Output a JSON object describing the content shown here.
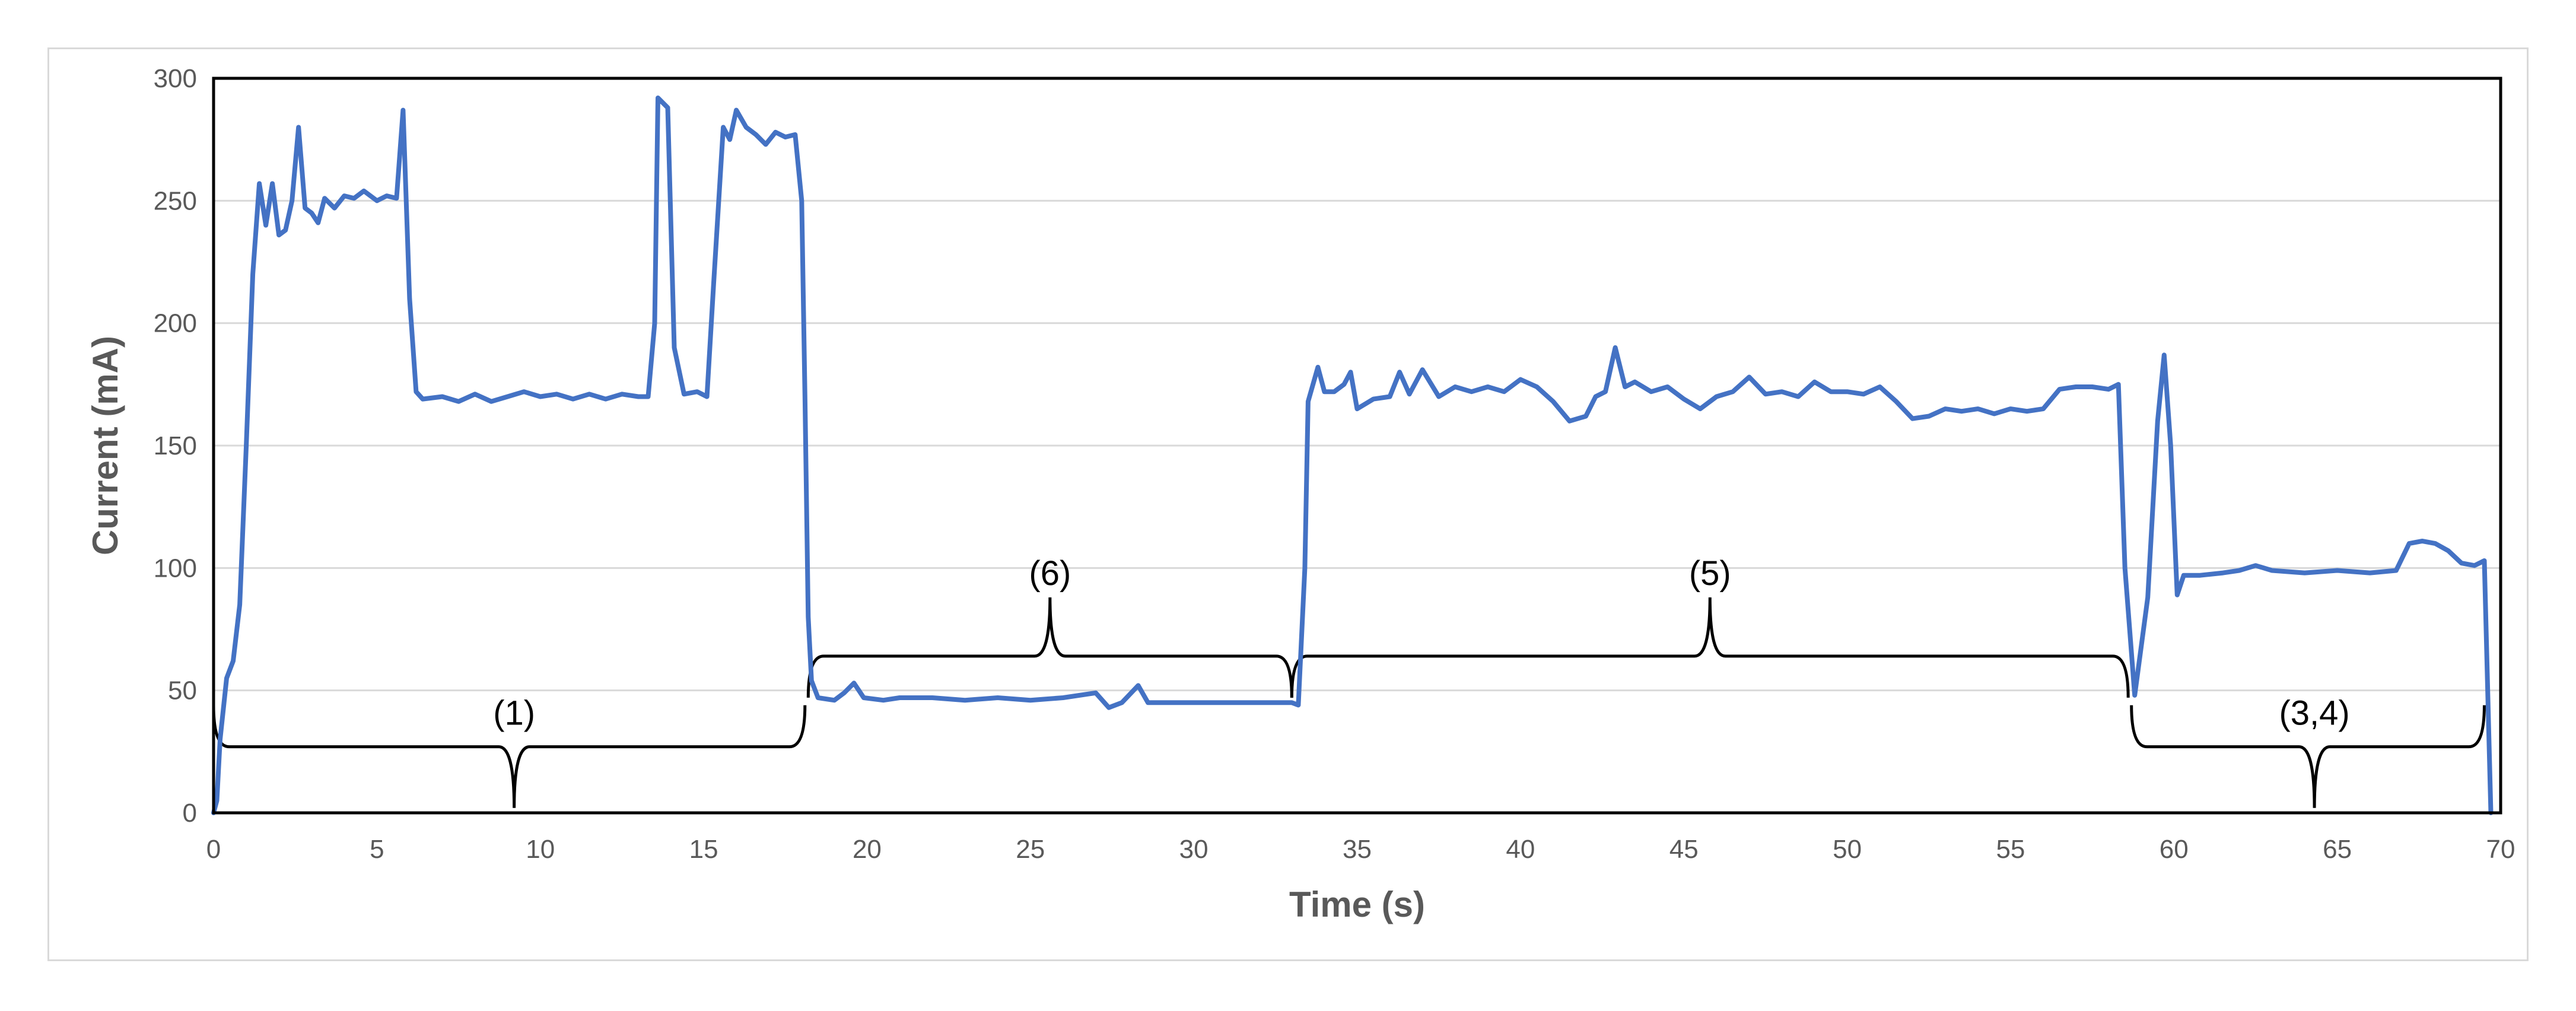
{
  "chart_data": {
    "type": "line",
    "title": "",
    "xlabel": "Time (s)",
    "ylabel": "Current (mA)",
    "xlim": [
      0,
      70
    ],
    "ylim": [
      0,
      300
    ],
    "x_ticks": [
      0,
      5,
      10,
      15,
      20,
      25,
      30,
      35,
      40,
      45,
      50,
      55,
      60,
      65,
      70
    ],
    "y_ticks": [
      0,
      50,
      100,
      150,
      200,
      250,
      300
    ],
    "grid": "horizontal",
    "legend": "none",
    "series_color": "#4472c4",
    "series": [
      {
        "values": [
          [
            0.0,
            0
          ],
          [
            0.1,
            5
          ],
          [
            0.2,
            30
          ],
          [
            0.4,
            55
          ],
          [
            0.6,
            62
          ],
          [
            0.8,
            85
          ],
          [
            1.0,
            150
          ],
          [
            1.2,
            220
          ],
          [
            1.4,
            257
          ],
          [
            1.6,
            240
          ],
          [
            1.8,
            257
          ],
          [
            2.0,
            236
          ],
          [
            2.2,
            238
          ],
          [
            2.4,
            250
          ],
          [
            2.6,
            280
          ],
          [
            2.8,
            247
          ],
          [
            3.0,
            245
          ],
          [
            3.2,
            241
          ],
          [
            3.4,
            251
          ],
          [
            3.7,
            247
          ],
          [
            4.0,
            252
          ],
          [
            4.3,
            251
          ],
          [
            4.6,
            254
          ],
          [
            5.0,
            250
          ],
          [
            5.3,
            252
          ],
          [
            5.6,
            251
          ],
          [
            5.8,
            287
          ],
          [
            6.0,
            210
          ],
          [
            6.2,
            172
          ],
          [
            6.4,
            169
          ],
          [
            7.0,
            170
          ],
          [
            7.5,
            168
          ],
          [
            8.0,
            171
          ],
          [
            8.5,
            168
          ],
          [
            9.0,
            170
          ],
          [
            9.5,
            172
          ],
          [
            10.0,
            170
          ],
          [
            10.5,
            171
          ],
          [
            11.0,
            169
          ],
          [
            11.5,
            171
          ],
          [
            12.0,
            169
          ],
          [
            12.5,
            171
          ],
          [
            13.0,
            170
          ],
          [
            13.3,
            170
          ],
          [
            13.5,
            200
          ],
          [
            13.6,
            292
          ],
          [
            13.9,
            288
          ],
          [
            14.1,
            190
          ],
          [
            14.4,
            171
          ],
          [
            14.8,
            172
          ],
          [
            15.1,
            170
          ],
          [
            15.3,
            215
          ],
          [
            15.6,
            280
          ],
          [
            15.8,
            275
          ],
          [
            16.0,
            287
          ],
          [
            16.3,
            280
          ],
          [
            16.6,
            277
          ],
          [
            16.9,
            273
          ],
          [
            17.2,
            278
          ],
          [
            17.5,
            276
          ],
          [
            17.8,
            277
          ],
          [
            18.0,
            250
          ],
          [
            18.1,
            170
          ],
          [
            18.2,
            80
          ],
          [
            18.3,
            54
          ],
          [
            18.5,
            47
          ],
          [
            19.0,
            46
          ],
          [
            19.3,
            49
          ],
          [
            19.6,
            53
          ],
          [
            19.9,
            47
          ],
          [
            20.5,
            46
          ],
          [
            21.0,
            47
          ],
          [
            22.0,
            47
          ],
          [
            23.0,
            46
          ],
          [
            24.0,
            47
          ],
          [
            25.0,
            46
          ],
          [
            26.0,
            47
          ],
          [
            27.0,
            49
          ],
          [
            27.4,
            43
          ],
          [
            27.8,
            45
          ],
          [
            28.3,
            52
          ],
          [
            28.6,
            45
          ],
          [
            29.0,
            45
          ],
          [
            30.0,
            45
          ],
          [
            31.0,
            45
          ],
          [
            32.0,
            45
          ],
          [
            33.0,
            45
          ],
          [
            33.2,
            44
          ],
          [
            33.4,
            100
          ],
          [
            33.5,
            168
          ],
          [
            33.8,
            182
          ],
          [
            34.0,
            172
          ],
          [
            34.3,
            172
          ],
          [
            34.6,
            175
          ],
          [
            34.8,
            180
          ],
          [
            35.0,
            165
          ],
          [
            35.5,
            169
          ],
          [
            36.0,
            170
          ],
          [
            36.3,
            180
          ],
          [
            36.6,
            171
          ],
          [
            37.0,
            181
          ],
          [
            37.5,
            170
          ],
          [
            38.0,
            174
          ],
          [
            38.5,
            172
          ],
          [
            39.0,
            174
          ],
          [
            39.5,
            172
          ],
          [
            40.0,
            177
          ],
          [
            40.5,
            174
          ],
          [
            41.0,
            168
          ],
          [
            41.5,
            160
          ],
          [
            42.0,
            162
          ],
          [
            42.3,
            170
          ],
          [
            42.6,
            172
          ],
          [
            42.9,
            190
          ],
          [
            43.2,
            174
          ],
          [
            43.5,
            176
          ],
          [
            44.0,
            172
          ],
          [
            44.5,
            174
          ],
          [
            45.0,
            169
          ],
          [
            45.5,
            165
          ],
          [
            46.0,
            170
          ],
          [
            46.5,
            172
          ],
          [
            47.0,
            178
          ],
          [
            47.5,
            171
          ],
          [
            48.0,
            172
          ],
          [
            48.5,
            170
          ],
          [
            49.0,
            176
          ],
          [
            49.5,
            172
          ],
          [
            50.0,
            172
          ],
          [
            50.5,
            171
          ],
          [
            51.0,
            174
          ],
          [
            51.5,
            168
          ],
          [
            52.0,
            161
          ],
          [
            52.5,
            162
          ],
          [
            53.0,
            165
          ],
          [
            53.5,
            164
          ],
          [
            54.0,
            165
          ],
          [
            54.5,
            163
          ],
          [
            55.0,
            165
          ],
          [
            55.5,
            164
          ],
          [
            56.0,
            165
          ],
          [
            56.5,
            173
          ],
          [
            57.0,
            174
          ],
          [
            57.5,
            174
          ],
          [
            58.0,
            173
          ],
          [
            58.3,
            175
          ],
          [
            58.5,
            100
          ],
          [
            58.8,
            48
          ],
          [
            59.2,
            88
          ],
          [
            59.5,
            160
          ],
          [
            59.7,
            187
          ],
          [
            59.9,
            150
          ],
          [
            60.1,
            89
          ],
          [
            60.3,
            97
          ],
          [
            60.8,
            97
          ],
          [
            61.5,
            98
          ],
          [
            62.0,
            99
          ],
          [
            62.5,
            101
          ],
          [
            63.0,
            99
          ],
          [
            64.0,
            98
          ],
          [
            65.0,
            99
          ],
          [
            66.0,
            98
          ],
          [
            66.8,
            99
          ],
          [
            67.2,
            110
          ],
          [
            67.6,
            111
          ],
          [
            68.0,
            110
          ],
          [
            68.4,
            107
          ],
          [
            68.8,
            102
          ],
          [
            69.2,
            101
          ],
          [
            69.5,
            103
          ],
          [
            69.7,
            0
          ]
        ]
      }
    ],
    "annotations": [
      {
        "label": "(1)",
        "x_start": 0.0,
        "x_end": 18.1,
        "x_label": 9.2,
        "y_line": 27,
        "y_tip": 2,
        "y_text": 36
      },
      {
        "label": "(6)",
        "x_start": 18.2,
        "x_end": 33.0,
        "x_label": 25.6,
        "y_line": 64,
        "y_tip": 88,
        "y_text": 93
      },
      {
        "label": "(5)",
        "x_start": 33.0,
        "x_end": 58.6,
        "x_label": 45.8,
        "y_line": 64,
        "y_tip": 88,
        "y_text": 93
      },
      {
        "label": "(3,4)",
        "x_start": 58.7,
        "x_end": 69.5,
        "x_label": 64.3,
        "y_line": 27,
        "y_tip": 2,
        "y_text": 36
      }
    ]
  }
}
